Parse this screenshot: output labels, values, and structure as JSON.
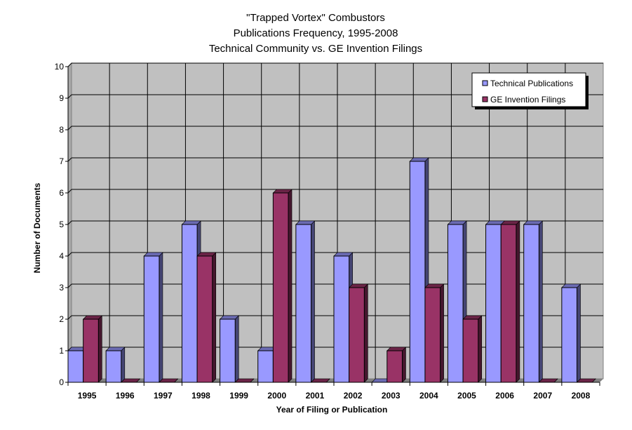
{
  "chart_data": {
    "type": "bar",
    "title_lines": [
      "\"Trapped Vortex\" Combustors",
      "Publications Frequency, 1995-2008",
      "Technical Community vs. GE Invention Filings"
    ],
    "xlabel": "Year of Filing or Publication",
    "ylabel": "Number of Documents",
    "ylim": [
      0,
      10
    ],
    "yticks": [
      "0",
      "1",
      "2",
      "3",
      "4",
      "5",
      "6",
      "7",
      "8",
      "9",
      "10"
    ],
    "grid": true,
    "legend_position": "top-right",
    "categories": [
      "1995",
      "1996",
      "1997",
      "1998",
      "1999",
      "2000",
      "2001",
      "2002",
      "2003",
      "2004",
      "2005",
      "2006",
      "2007",
      "2008"
    ],
    "series": [
      {
        "name": "Technical Publications",
        "color": "#9999ff",
        "values": [
          1,
          1,
          4,
          5,
          2,
          1,
          5,
          4,
          0,
          7,
          5,
          5,
          5,
          3
        ]
      },
      {
        "name": "GE Invention Filings",
        "color": "#993366",
        "values": [
          2,
          0,
          0,
          4,
          0,
          6,
          0,
          3,
          1,
          3,
          2,
          5,
          0,
          0
        ]
      }
    ]
  }
}
